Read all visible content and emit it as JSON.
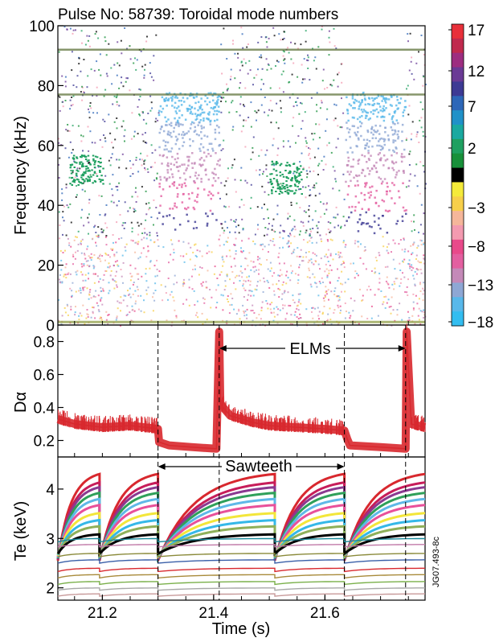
{
  "chart_data": [
    {
      "type": "heatmap",
      "title": "Pulse No: 58739:   Toroidal mode numbers",
      "ylabel": "Frequency (kHz)",
      "ylim": [
        0,
        100
      ],
      "y_ticks": [
        "0",
        "20",
        "40",
        "60",
        "80",
        "100"
      ],
      "xlim": [
        21.12,
        21.78
      ],
      "colorbar": {
        "ticks": [
          "17",
          "12",
          "7",
          "2",
          "−3",
          "−8",
          "−13",
          "−18"
        ],
        "colors": [
          "#e8303a",
          "#c02a4e",
          "#9d2d80",
          "#6a3a95",
          "#3d3a94",
          "#2d67b8",
          "#2091c8",
          "#1aa9a0",
          "#1fa060",
          "#18903a",
          "#000000",
          "#f4ea3a",
          "#f7cf4a",
          "#f5b69a",
          "#f39ab0",
          "#e8498a",
          "#e35fa0",
          "#c489b8",
          "#8ea7d4",
          "#58b8ea",
          "#33bdf0"
        ]
      },
      "quiet_bands_s": [
        [
          21.3,
          21.41
        ],
        [
          21.635,
          21.745
        ]
      ],
      "features": [
        {
          "type": "horizontal-line",
          "frequency_khz": 92
        },
        {
          "type": "horizontal-line",
          "frequency_khz": 77
        },
        {
          "type": "mode-cluster",
          "time_s": [
            21.14,
            21.2
          ],
          "frequency_khz": [
            47,
            57
          ],
          "mode": 2
        },
        {
          "type": "mode-cluster",
          "time_s": [
            21.5,
            21.56
          ],
          "frequency_khz": [
            44,
            55
          ],
          "mode": 2
        },
        {
          "type": "high-frequency-band",
          "time_s": [
            21.3,
            21.41
          ],
          "frequency_khz": [
            30,
            78
          ]
        },
        {
          "type": "high-frequency-band",
          "time_s": [
            21.635,
            21.745
          ],
          "frequency_khz": [
            30,
            78
          ]
        }
      ]
    },
    {
      "type": "line",
      "ylabel": "Dα",
      "ylim": [
        0.1,
        0.9
      ],
      "y_ticks": [
        "0.2",
        "0.4",
        "0.6",
        "0.8"
      ],
      "series": [
        {
          "color": "#d8282e",
          "x": [
            21.12,
            21.15,
            21.2,
            21.25,
            21.3,
            21.302,
            21.32,
            21.36,
            21.405,
            21.41,
            21.412,
            21.43,
            21.47,
            21.5,
            21.55,
            21.6,
            21.635,
            21.64,
            21.645,
            21.7,
            21.745,
            21.747,
            21.755,
            21.78
          ],
          "y": [
            0.33,
            0.3,
            0.28,
            0.29,
            0.27,
            0.19,
            0.17,
            0.16,
            0.15,
            0.86,
            0.42,
            0.35,
            0.31,
            0.29,
            0.28,
            0.27,
            0.26,
            0.21,
            0.17,
            0.16,
            0.15,
            0.86,
            0.3,
            0.28
          ]
        }
      ]
    },
    {
      "type": "line",
      "ylabel": "Te (keV)",
      "xlabel": "Time (s)",
      "ylim": [
        1.75,
        4.65
      ],
      "y_ticks": [
        "2",
        "3",
        "4"
      ],
      "x_ticks": [
        "21.2",
        "21.4",
        "21.6"
      ],
      "x_tick_values": [
        21.2,
        21.4,
        21.6
      ],
      "crash_times_s": [
        21.12,
        21.195,
        21.3,
        21.51,
        21.635
      ],
      "series": [
        {
          "color": "#d8282e",
          "v0": 4.18,
          "v1": 4.38
        },
        {
          "color": "#c71d5a",
          "v0": 4.05,
          "v1": 4.2
        },
        {
          "color": "#8a3a90",
          "v0": 3.95,
          "v1": 4.1
        },
        {
          "color": "#2fa05a",
          "v0": 3.85,
          "v1": 3.98
        },
        {
          "color": "#5fb8e8",
          "v0": 3.75,
          "v1": 3.85
        },
        {
          "color": "#e8509a",
          "v0": 3.62,
          "v1": 3.72
        },
        {
          "color": "#f3e63a",
          "v0": 3.45,
          "v1": 3.55
        },
        {
          "color": "#35b8e8",
          "v0": 3.32,
          "v1": 3.4
        },
        {
          "color": "#8fb05a",
          "v0": 3.2,
          "v1": 3.27
        },
        {
          "color": "#000000",
          "v0": 3.05,
          "v1": 3.1
        },
        {
          "color": "#1a8a9a",
          "v0": 2.98,
          "v1": 3.0
        },
        {
          "color": "#c17aa8",
          "v0": 2.88,
          "v1": 2.88
        },
        {
          "color": "#8a8a3a",
          "v0": 2.68,
          "v1": 2.7
        },
        {
          "color": "#3a5fa8",
          "v0": 2.55,
          "v1": 2.57
        },
        {
          "color": "#d8282e",
          "v0": 2.38,
          "v1": 2.4
        },
        {
          "color": "#a88a3a",
          "v0": 2.25,
          "v1": 2.27
        },
        {
          "color": "#7ab04a",
          "v0": 2.12,
          "v1": 2.13
        },
        {
          "color": "#a8a8a8",
          "v0": 2.0,
          "v1": 2.0
        },
        {
          "color": "#c89a9a",
          "v0": 1.88,
          "v1": 1.88
        }
      ]
    }
  ],
  "annotations": {
    "elms": "ELMs",
    "sawteeth": "Sawteeth",
    "identifier": "JG07.493-8c"
  },
  "dashed_line_times_s": [
    21.3,
    21.41,
    21.635,
    21.745
  ],
  "arrows": {
    "elms_from_s": 21.41,
    "elms_to_s": 21.745,
    "sawteeth_from_s": 21.3,
    "sawteeth_to_s": 21.635
  }
}
